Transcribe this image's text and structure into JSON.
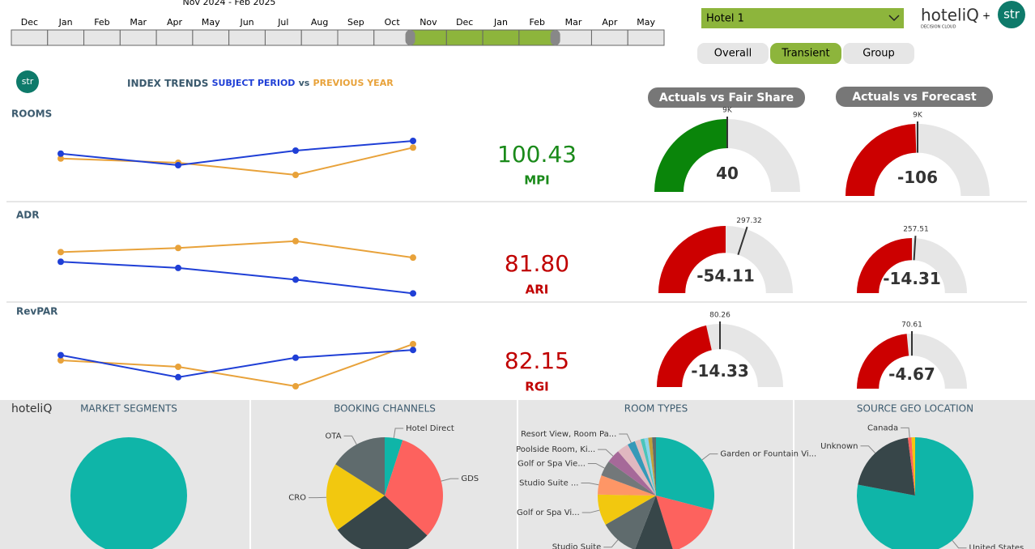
{
  "timeline": {
    "range_label": "Nov 2024 - Feb 2025",
    "months": [
      {
        "label": "Dec",
        "selected": false
      },
      {
        "label": "Jan",
        "selected": false
      },
      {
        "label": "Feb",
        "selected": false
      },
      {
        "label": "Mar",
        "selected": false
      },
      {
        "label": "Apr",
        "selected": false
      },
      {
        "label": "May",
        "selected": false
      },
      {
        "label": "Jun",
        "selected": false
      },
      {
        "label": "Jul",
        "selected": false
      },
      {
        "label": "Aug",
        "selected": false
      },
      {
        "label": "Sep",
        "selected": false
      },
      {
        "label": "Oct",
        "selected": false
      },
      {
        "label": "Nov",
        "selected": true
      },
      {
        "label": "Dec",
        "selected": true
      },
      {
        "label": "Jan",
        "selected": true
      },
      {
        "label": "Feb",
        "selected": true
      },
      {
        "label": "Mar",
        "selected": false
      },
      {
        "label": "Apr",
        "selected": false
      },
      {
        "label": "May",
        "selected": false
      }
    ]
  },
  "hotel_select": "Hotel 1",
  "brand": {
    "name": "hoteliQ",
    "tagline": "DECISION CLOUD",
    "plus": "+",
    "partner": "str"
  },
  "tabs": [
    {
      "label": "Overall",
      "active": false
    },
    {
      "label": "Transient",
      "active": true
    },
    {
      "label": "Group",
      "active": false
    }
  ],
  "index_trends": {
    "logo": "str",
    "title": "INDEX TRENDS",
    "subject": "SUBJECT PERIOD",
    "vs": "vs",
    "previous": "PREVIOUS YEAR",
    "subject_color": "#1f3fd6",
    "previous_color": "#e8a23a"
  },
  "gauge_headers": [
    "Actuals vs Fair Share",
    "Actuals vs Forecast"
  ],
  "rows": [
    {
      "label": "ROOMS",
      "ylim": [
        0,
        100
      ],
      "subject": [
        47,
        28,
        52,
        68
      ],
      "previous": [
        39,
        32,
        12,
        57
      ],
      "index": {
        "value": "100.43",
        "name": "MPI",
        "color": "#1a8a1a"
      },
      "gauges": [
        {
          "value": 40,
          "target": {
            "value": 9000,
            "label": "9K"
          },
          "fill_pct": 50,
          "target_pct": 50,
          "color": "#0a850a"
        },
        {
          "value": -106,
          "target": {
            "value": 9000,
            "label": "9K"
          },
          "fill_pct": 49,
          "target_pct": 50,
          "color": "#cc0000"
        }
      ]
    },
    {
      "label": "ADR",
      "ylim": [
        0,
        100
      ],
      "subject": [
        55,
        46,
        29,
        9
      ],
      "previous": [
        69,
        75,
        85,
        61
      ],
      "index": {
        "value": "81.80",
        "name": "ARI",
        "color": "#c00000"
      },
      "gauges": [
        {
          "value": -54.11,
          "target": 297.32,
          "fill_pct": 50,
          "target_pct": 60,
          "color": "#cc0000"
        },
        {
          "value": -14.31,
          "target": 257.51,
          "fill_pct": 50,
          "target_pct": 52,
          "color": "#cc0000"
        }
      ]
    },
    {
      "label": "RevPAR",
      "ylim": [
        0,
        100
      ],
      "subject": [
        58,
        24,
        54,
        66
      ],
      "previous": [
        50,
        40,
        10,
        75
      ],
      "index": {
        "value": "82.15",
        "name": "RGI",
        "color": "#c00000"
      },
      "gauges": [
        {
          "value": -14.33,
          "target": 80.26,
          "fill_pct": 43,
          "target_pct": 50,
          "color": "#cc0000"
        },
        {
          "value": -4.67,
          "target": 70.61,
          "fill_pct": 47,
          "target_pct": 50,
          "color": "#cc0000"
        }
      ]
    }
  ],
  "bottom": {
    "logo": "hoteliQ",
    "panels": [
      {
        "title": "MARKET SEGMENTS",
        "slices": [
          {
            "name": null,
            "value": 100,
            "color": "#0fb5a8"
          }
        ]
      },
      {
        "title": "BOOKING CHANNELS",
        "slices": [
          {
            "name": "Hotel Direct",
            "value": 5,
            "color": "#0fb5a8"
          },
          {
            "name": "GDS",
            "value": 32,
            "color": "#fd625e"
          },
          {
            "name": null,
            "value": 28,
            "color": "#374649"
          },
          {
            "name": "CRO",
            "value": 19,
            "color": "#f2c80f"
          },
          {
            "name": "OTA",
            "value": 16,
            "color": "#5f6b6d"
          }
        ]
      },
      {
        "title": "ROOM TYPES",
        "slices": [
          {
            "name": "Garden or Fountain Vi...",
            "value": 27,
            "color": "#0fb5a8"
          },
          {
            "name": null,
            "value": 15,
            "color": "#fd625e"
          },
          {
            "name": null,
            "value": 10,
            "color": "#374649"
          },
          {
            "name": "Studio Suite",
            "value": 10,
            "color": "#5f6b6d"
          },
          {
            "name": "Golf or Spa Vi...",
            "value": 8,
            "color": "#f2c80f"
          },
          {
            "name": "Studio Suite ...",
            "value": 5,
            "color": "#fe9666"
          },
          {
            "name": "Golf or Spa Vie...",
            "value": 4,
            "color": "#73787a"
          },
          {
            "name": "Poolside Room, Ki...",
            "value": 3.5,
            "color": "#a66999"
          },
          {
            "name": null,
            "value": 3,
            "color": "#e0b8c0"
          },
          {
            "name": "Resort View, Room Pa...",
            "value": 2,
            "color": "#3599b8"
          },
          {
            "name": null,
            "value": 1.5,
            "color": "#dfbfbf"
          },
          {
            "name": null,
            "value": 1,
            "color": "#4ac5bb"
          },
          {
            "name": null,
            "value": 1,
            "color": "#8ad4eb"
          },
          {
            "name": null,
            "value": 1,
            "color": "#bfa13a"
          },
          {
            "name": null,
            "value": 1,
            "color": "#5f6b6d"
          }
        ]
      },
      {
        "title": "SOURCE GEO LOCATION",
        "slices": [
          {
            "name": "United States",
            "value": 78,
            "color": "#0fb5a8"
          },
          {
            "name": "Unknown",
            "value": 20,
            "color": "#374649"
          },
          {
            "name": "Canada",
            "value": 1,
            "color": "#fd625e"
          },
          {
            "name": null,
            "value": 1,
            "color": "#f2c80f"
          }
        ]
      }
    ]
  }
}
